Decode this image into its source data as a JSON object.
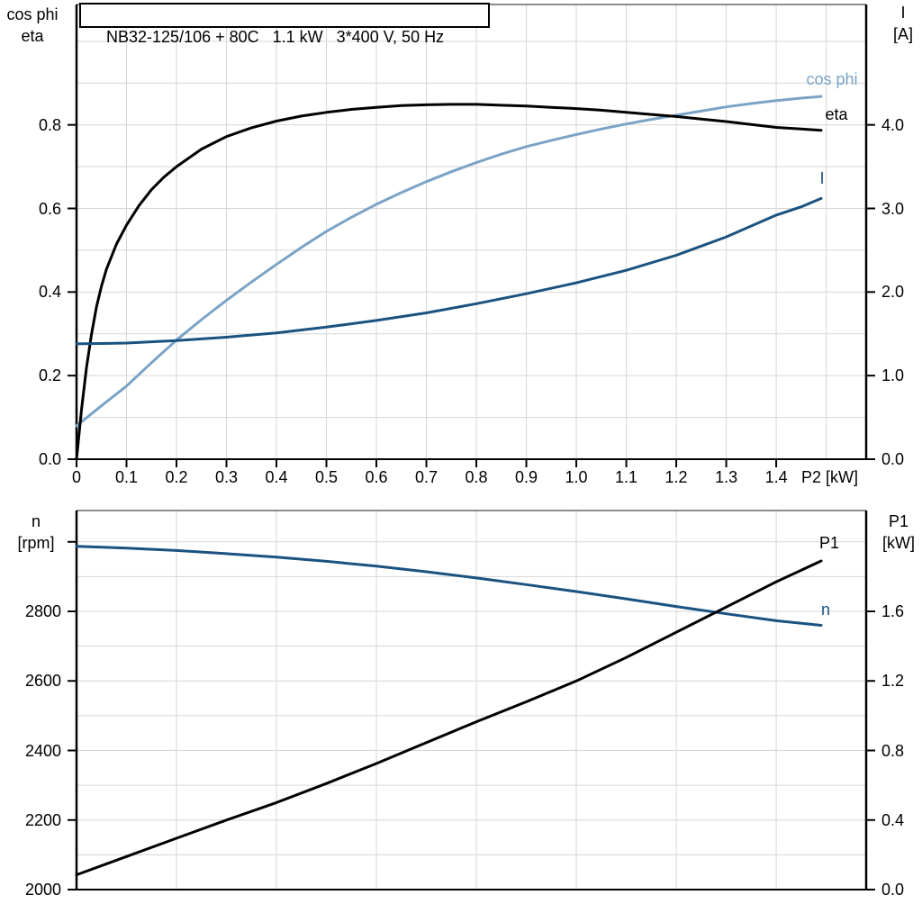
{
  "title_box": {
    "text": "NB32-125/106 + 80C   1.1 kW   3*400 V, 50 Hz"
  },
  "colors": {
    "light_blue": "#7ba3c6",
    "dark_blue": "#1a5280",
    "black": "#000000",
    "grid": "#d6d6d6",
    "axis": "#000000",
    "background": "#ffffff"
  },
  "chart_data": [
    {
      "type": "line",
      "name": "motor electrical curves",
      "x_axis": {
        "title": "P2 [kW]",
        "min": 0,
        "max": 1.58,
        "grid_step": 0.1,
        "tick_values": [
          0,
          0.1,
          0.2,
          0.3,
          0.4,
          0.5,
          0.6,
          0.7,
          0.8,
          0.9,
          1.0,
          1.1,
          1.2,
          1.3,
          1.4
        ],
        "tick_labels": [
          "0",
          "0.1",
          "0.2",
          "0.3",
          "0.4",
          "0.5",
          "0.6",
          "0.7",
          "0.8",
          "0.9",
          "1.0",
          "1.1",
          "1.2",
          "1.3",
          "1.4"
        ]
      },
      "y_left": {
        "title_lines": [
          "cos phi",
          "eta"
        ],
        "min": 0,
        "max": 1.088,
        "grid_step": 0.1,
        "tick_values": [
          0,
          0.2,
          0.4,
          0.6,
          0.8
        ],
        "tick_labels": [
          "0.0",
          "0.2",
          "0.4",
          "0.6",
          "0.8"
        ]
      },
      "y_right": {
        "title_lines": [
          "I",
          "[A]"
        ],
        "min": 0,
        "max": 5.44,
        "grid_step": 0.5,
        "tick_values": [
          0,
          1,
          2,
          3,
          4
        ],
        "tick_labels": [
          "0.0",
          "1.0",
          "2.0",
          "3.0",
          "4.0"
        ]
      },
      "series": [
        {
          "name": "cos phi",
          "axis": "left",
          "color": "#7ba3c6",
          "label": {
            "text": "cos phi",
            "x": 924,
            "y": 88
          },
          "points": [
            [
              0,
              0.08
            ],
            [
              0.05,
              0.128
            ],
            [
              0.1,
              0.175
            ],
            [
              0.15,
              0.231
            ],
            [
              0.2,
              0.285
            ],
            [
              0.25,
              0.334
            ],
            [
              0.3,
              0.38
            ],
            [
              0.35,
              0.424
            ],
            [
              0.4,
              0.466
            ],
            [
              0.45,
              0.507
            ],
            [
              0.5,
              0.545
            ],
            [
              0.55,
              0.579
            ],
            [
              0.6,
              0.61
            ],
            [
              0.65,
              0.638
            ],
            [
              0.7,
              0.664
            ],
            [
              0.75,
              0.688
            ],
            [
              0.8,
              0.71
            ],
            [
              0.85,
              0.73
            ],
            [
              0.9,
              0.748
            ],
            [
              0.95,
              0.763
            ],
            [
              1.0,
              0.777
            ],
            [
              1.05,
              0.79
            ],
            [
              1.1,
              0.802
            ],
            [
              1.15,
              0.813
            ],
            [
              1.2,
              0.823
            ],
            [
              1.25,
              0.833
            ],
            [
              1.3,
              0.843
            ],
            [
              1.35,
              0.851
            ],
            [
              1.4,
              0.858
            ],
            [
              1.45,
              0.864
            ],
            [
              1.49,
              0.868
            ]
          ]
        },
        {
          "name": "eta",
          "axis": "left",
          "color": "#000000",
          "label": {
            "text": "eta",
            "x": 929,
            "y": 127
          },
          "points": [
            [
              0,
              0
            ],
            [
              0.01,
              0.12
            ],
            [
              0.02,
              0.22
            ],
            [
              0.03,
              0.3
            ],
            [
              0.04,
              0.365
            ],
            [
              0.05,
              0.415
            ],
            [
              0.06,
              0.455
            ],
            [
              0.08,
              0.515
            ],
            [
              0.1,
              0.56
            ],
            [
              0.125,
              0.607
            ],
            [
              0.15,
              0.645
            ],
            [
              0.175,
              0.675
            ],
            [
              0.2,
              0.7
            ],
            [
              0.25,
              0.742
            ],
            [
              0.3,
              0.772
            ],
            [
              0.35,
              0.793
            ],
            [
              0.4,
              0.809
            ],
            [
              0.45,
              0.821
            ],
            [
              0.5,
              0.83
            ],
            [
              0.55,
              0.837
            ],
            [
              0.6,
              0.842
            ],
            [
              0.65,
              0.846
            ],
            [
              0.7,
              0.848
            ],
            [
              0.75,
              0.849
            ],
            [
              0.8,
              0.849
            ],
            [
              0.85,
              0.847
            ],
            [
              0.9,
              0.845
            ],
            [
              0.95,
              0.842
            ],
            [
              1.0,
              0.839
            ],
            [
              1.05,
              0.835
            ],
            [
              1.1,
              0.83
            ],
            [
              1.15,
              0.825
            ],
            [
              1.2,
              0.82
            ],
            [
              1.25,
              0.814
            ],
            [
              1.3,
              0.808
            ],
            [
              1.35,
              0.801
            ],
            [
              1.4,
              0.794
            ],
            [
              1.45,
              0.79
            ],
            [
              1.49,
              0.787
            ]
          ]
        },
        {
          "name": "I",
          "axis": "right",
          "color": "#1a5280",
          "label": {
            "text": "I",
            "x": 913,
            "y": 198
          },
          "points": [
            [
              0,
              1.38
            ],
            [
              0.1,
              1.39
            ],
            [
              0.2,
              1.42
            ],
            [
              0.3,
              1.46
            ],
            [
              0.4,
              1.51
            ],
            [
              0.5,
              1.58
            ],
            [
              0.6,
              1.66
            ],
            [
              0.7,
              1.75
            ],
            [
              0.8,
              1.86
            ],
            [
              0.9,
              1.98
            ],
            [
              1.0,
              2.11
            ],
            [
              1.1,
              2.26
            ],
            [
              1.2,
              2.44
            ],
            [
              1.3,
              2.66
            ],
            [
              1.4,
              2.92
            ],
            [
              1.45,
              3.02
            ],
            [
              1.49,
              3.12
            ]
          ]
        }
      ]
    },
    {
      "type": "line",
      "name": "speed and input power curves",
      "x_axis": {
        "title": "",
        "min": 0,
        "max": 1.58,
        "grid_step": 0.2,
        "tick_values": [],
        "tick_labels": []
      },
      "y_left": {
        "title_lines": [
          "n",
          "[rpm]"
        ],
        "min": 2000,
        "max": 3090,
        "grid_step": 100,
        "tick_values": [
          2000,
          2200,
          2400,
          2600,
          2800,
          3000
        ],
        "tick_labels": [
          "2000",
          "2200",
          "2400",
          "2600",
          "2800",
          ""
        ]
      },
      "y_right": {
        "title_lines": [
          "P1",
          "[kW]"
        ],
        "min": 0,
        "max": 2.18,
        "grid_step": 0.2,
        "tick_values": [
          0,
          0.4,
          0.8,
          1.2,
          1.6
        ],
        "tick_labels": [
          "0.0",
          "0.4",
          "0.8",
          "1.2",
          "1.6"
        ]
      },
      "series": [
        {
          "name": "n",
          "axis": "left",
          "color": "#1a5280",
          "label": {
            "text": "n",
            "x": 917,
            "y": 677
          },
          "points": [
            [
              0,
              2987
            ],
            [
              0.1,
              2982
            ],
            [
              0.2,
              2975
            ],
            [
              0.3,
              2966
            ],
            [
              0.4,
              2956
            ],
            [
              0.5,
              2944
            ],
            [
              0.6,
              2930
            ],
            [
              0.7,
              2914
            ],
            [
              0.8,
              2896
            ],
            [
              0.9,
              2877
            ],
            [
              1.0,
              2857
            ],
            [
              1.1,
              2836
            ],
            [
              1.2,
              2814
            ],
            [
              1.3,
              2793
            ],
            [
              1.4,
              2773
            ],
            [
              1.49,
              2760
            ]
          ]
        },
        {
          "name": "P1",
          "axis": "right",
          "color": "#000000",
          "label": {
            "text": "P1",
            "x": 921,
            "y": 603
          },
          "points": [
            [
              0,
              0.085
            ],
            [
              0.1,
              0.19
            ],
            [
              0.2,
              0.295
            ],
            [
              0.3,
              0.4
            ],
            [
              0.4,
              0.5
            ],
            [
              0.5,
              0.61
            ],
            [
              0.6,
              0.725
            ],
            [
              0.7,
              0.845
            ],
            [
              0.8,
              0.965
            ],
            [
              0.9,
              1.08
            ],
            [
              1.0,
              1.2
            ],
            [
              1.1,
              1.335
            ],
            [
              1.2,
              1.48
            ],
            [
              1.3,
              1.625
            ],
            [
              1.4,
              1.77
            ],
            [
              1.49,
              1.89
            ]
          ]
        }
      ]
    }
  ]
}
